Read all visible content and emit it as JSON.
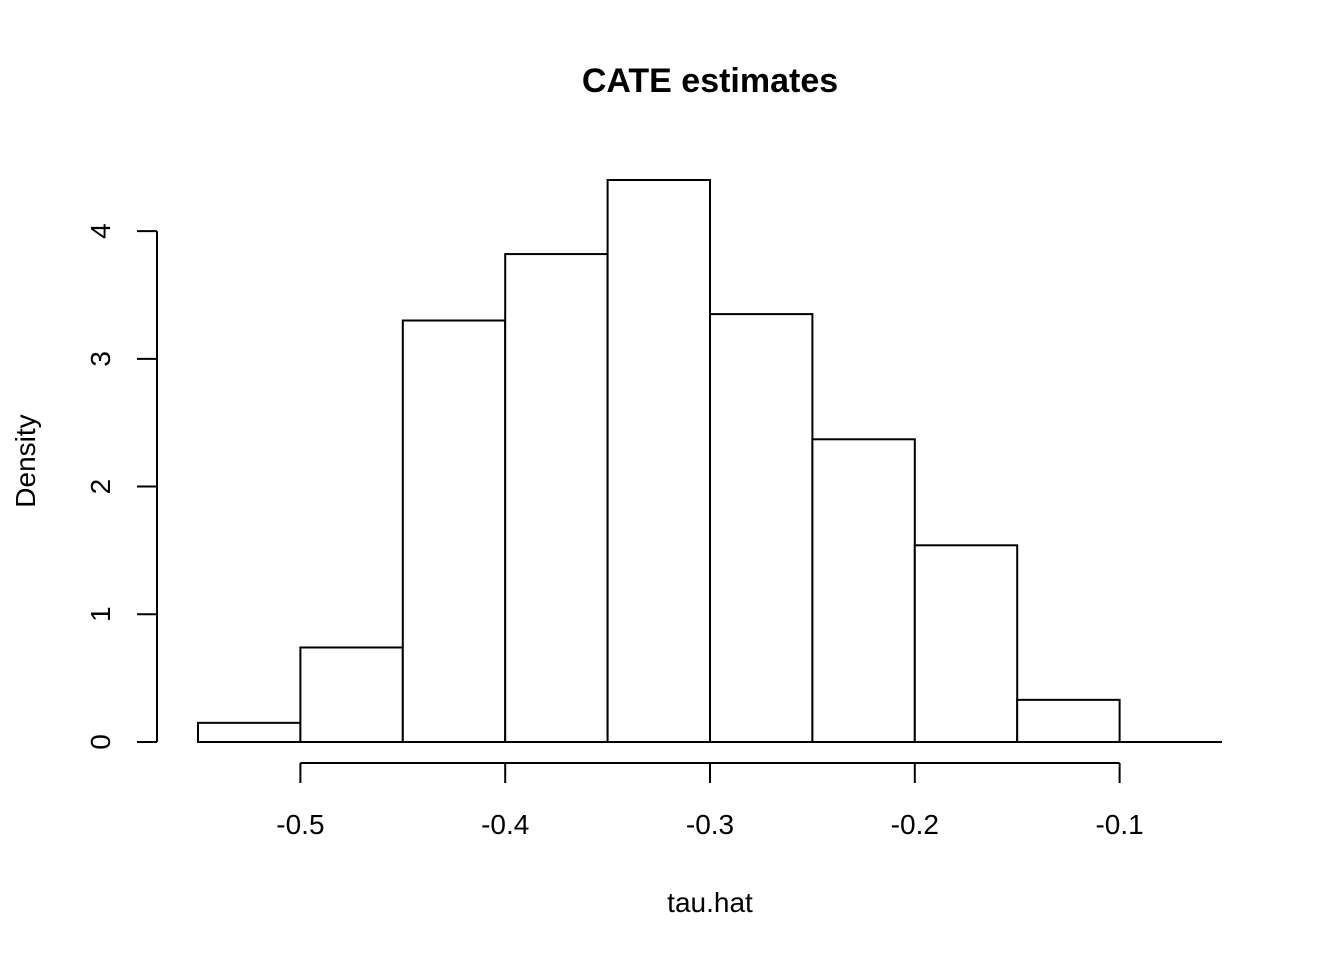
{
  "chart_data": {
    "type": "bar",
    "title": "CATE estimates",
    "xlabel": "tau.hat",
    "ylabel": "Density",
    "bins": [
      {
        "x0": -0.55,
        "x1": -0.5,
        "value": 0.15
      },
      {
        "x0": -0.5,
        "x1": -0.45,
        "value": 0.74
      },
      {
        "x0": -0.45,
        "x1": -0.4,
        "value": 3.3
      },
      {
        "x0": -0.4,
        "x1": -0.35,
        "value": 3.82
      },
      {
        "x0": -0.35,
        "x1": -0.3,
        "value": 4.4
      },
      {
        "x0": -0.3,
        "x1": -0.25,
        "value": 3.35
      },
      {
        "x0": -0.25,
        "x1": -0.2,
        "value": 2.37
      },
      {
        "x0": -0.2,
        "x1": -0.15,
        "value": 1.54
      },
      {
        "x0": -0.15,
        "x1": -0.1,
        "value": 0.33
      },
      {
        "x0": -0.1,
        "x1": -0.05,
        "value": 0.0
      }
    ],
    "xticks": [
      -0.5,
      -0.4,
      -0.3,
      -0.2,
      -0.1
    ],
    "xtick_labels": [
      "-0.5",
      "-0.4",
      "-0.3",
      "-0.2",
      "-0.1"
    ],
    "yticks": [
      0,
      1,
      2,
      3,
      4
    ],
    "ytick_labels": [
      "0",
      "1",
      "2",
      "3",
      "4"
    ],
    "xlim": [
      -0.55,
      -0.05
    ],
    "ylim": [
      0,
      4.4
    ],
    "grid": false,
    "legend": "none",
    "colors": {
      "bar_fill": "#ffffff",
      "bar_stroke": "#000000"
    }
  }
}
